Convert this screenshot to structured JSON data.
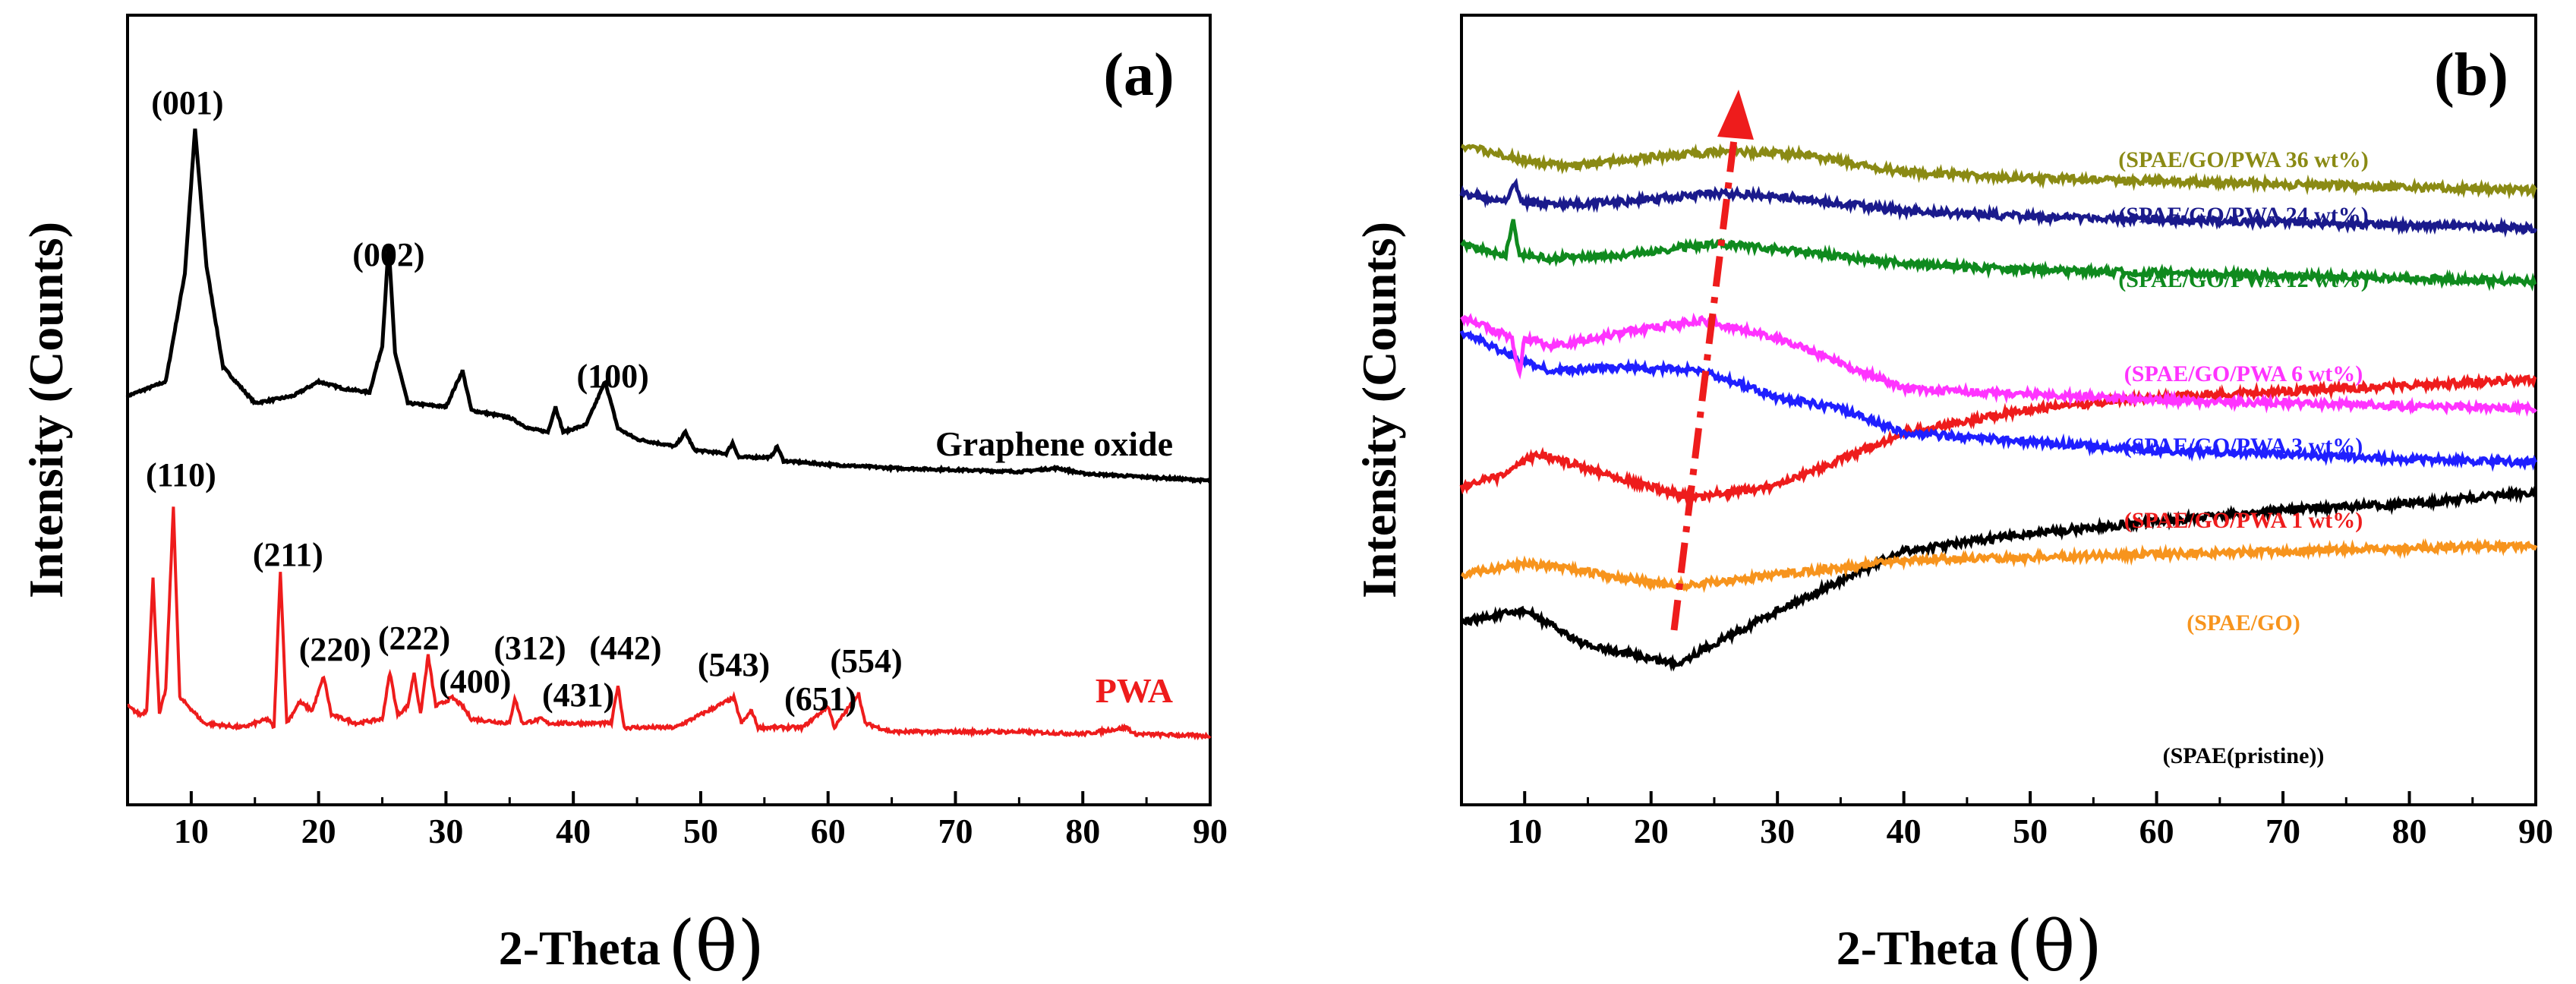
{
  "chart_data": [
    {
      "panel": "(a)",
      "type": "line",
      "xlabel": "2-Theta",
      "xlabel_symbol": "(θ)",
      "ylabel": "Intensity (Counts)",
      "xlim": [
        5,
        90
      ],
      "xticks": [
        10,
        20,
        30,
        40,
        50,
        60,
        70,
        80,
        90
      ],
      "series": [
        {
          "name": "Graphene oxide",
          "color": "#000000",
          "baseline": 0.43,
          "points": [
            [
              5,
              0.26
            ],
            [
              8,
              0.3
            ],
            [
              9.5,
              0.6
            ],
            [
              10.3,
              1.0
            ],
            [
              11.2,
              0.62
            ],
            [
              12.5,
              0.34
            ],
            [
              15,
              0.24
            ],
            [
              18,
              0.26
            ],
            [
              20,
              0.3
            ],
            [
              22,
              0.28
            ],
            [
              24,
              0.27
            ],
            [
              25.0,
              0.4
            ],
            [
              25.5,
              0.68
            ],
            [
              26.0,
              0.38
            ],
            [
              27,
              0.24
            ],
            [
              30,
              0.23
            ],
            [
              31.3,
              0.33
            ],
            [
              32,
              0.22
            ],
            [
              35,
              0.2
            ],
            [
              36.5,
              0.17
            ],
            [
              38,
              0.16
            ],
            [
              38.6,
              0.23
            ],
            [
              39.2,
              0.16
            ],
            [
              41,
              0.18
            ],
            [
              42.5,
              0.3
            ],
            [
              43.5,
              0.17
            ],
            [
              45,
              0.14
            ],
            [
              48,
              0.12
            ],
            [
              48.8,
              0.16
            ],
            [
              49.5,
              0.11
            ],
            [
              52,
              0.1
            ],
            [
              52.5,
              0.13
            ],
            [
              53,
              0.09
            ],
            [
              55.5,
              0.09
            ],
            [
              56,
              0.12
            ],
            [
              56.5,
              0.08
            ],
            [
              60,
              0.07
            ],
            [
              65,
              0.06
            ],
            [
              70,
              0.055
            ],
            [
              75,
              0.05
            ],
            [
              78,
              0.06
            ],
            [
              80,
              0.045
            ],
            [
              85,
              0.035
            ],
            [
              90,
              0.025
            ]
          ],
          "peaks": [
            {
              "x": 10.3,
              "label": "(001)"
            },
            {
              "x": 25.5,
              "label": "(002)"
            },
            {
              "x": 42.5,
              "label": "(100)"
            }
          ]
        },
        {
          "name": "PWA",
          "color": "#ee1c1c",
          "baseline": 0.0,
          "points": [
            [
              5,
              0.08
            ],
            [
              6,
              0.06
            ],
            [
              6.5,
              0.07
            ],
            [
              7.0,
              0.38
            ],
            [
              7.5,
              0.06
            ],
            [
              8.0,
              0.12
            ],
            [
              8.6,
              0.55
            ],
            [
              9.1,
              0.1
            ],
            [
              9.8,
              0.08
            ],
            [
              11,
              0.04
            ],
            [
              14,
              0.03
            ],
            [
              16,
              0.05
            ],
            [
              16.5,
              0.03
            ],
            [
              17.0,
              0.4
            ],
            [
              17.5,
              0.04
            ],
            [
              18.5,
              0.09
            ],
            [
              19.5,
              0.07
            ],
            [
              20.4,
              0.15
            ],
            [
              21,
              0.06
            ],
            [
              23,
              0.04
            ],
            [
              25,
              0.05
            ],
            [
              25.6,
              0.16
            ],
            [
              26.2,
              0.06
            ],
            [
              27,
              0.08
            ],
            [
              27.5,
              0.16
            ],
            [
              28,
              0.06
            ],
            [
              28.6,
              0.2
            ],
            [
              29.2,
              0.08
            ],
            [
              30.5,
              0.1
            ],
            [
              31.3,
              0.08
            ],
            [
              32,
              0.05
            ],
            [
              35,
              0.04
            ],
            [
              35.4,
              0.1
            ],
            [
              36,
              0.04
            ],
            [
              37.5,
              0.05
            ],
            [
              38,
              0.04
            ],
            [
              43.0,
              0.04
            ],
            [
              43.5,
              0.13
            ],
            [
              44,
              0.03
            ],
            [
              48,
              0.03
            ],
            [
              52.6,
              0.1
            ],
            [
              53.2,
              0.04
            ],
            [
              54,
              0.07
            ],
            [
              54.5,
              0.03
            ],
            [
              58,
              0.03
            ],
            [
              60.0,
              0.08
            ],
            [
              60.5,
              0.03
            ],
            [
              62.4,
              0.11
            ],
            [
              62.9,
              0.04
            ],
            [
              65,
              0.02
            ],
            [
              70,
              0.02
            ],
            [
              75,
              0.02
            ],
            [
              80,
              0.015
            ],
            [
              83.5,
              0.03
            ],
            [
              84,
              0.015
            ],
            [
              90,
              0.01
            ]
          ],
          "peaks": [
            {
              "x": 8.6,
              "label": "(110)"
            },
            {
              "x": 17.0,
              "label": "(211)"
            },
            {
              "x": 20.4,
              "label": "(220)"
            },
            {
              "x": 27.5,
              "label": "(222)"
            },
            {
              "x": 30.5,
              "label": "(400)"
            },
            {
              "x": 35.4,
              "label": "(312)"
            },
            {
              "x": 38.0,
              "label": "(431)"
            },
            {
              "x": 43.5,
              "label": "(442)"
            },
            {
              "x": 52.6,
              "label": "(543)"
            },
            {
              "x": 60.0,
              "label": "(651)"
            },
            {
              "x": 62.4,
              "label": "(554)"
            }
          ]
        }
      ]
    },
    {
      "panel": "(b)",
      "type": "line",
      "xlabel": "2-Theta",
      "xlabel_symbol": "(θ)",
      "ylabel": "Intensity (Counts)",
      "xlim": [
        5,
        90
      ],
      "xticks": [
        10,
        20,
        30,
        40,
        50,
        60,
        70,
        80,
        90
      ],
      "annotation": "red dash-dot arrow indicating amorphous peak shift toward higher 2-Theta with PWA loading",
      "series": [
        {
          "name": "(SPAE(pristine))",
          "color": "#000000",
          "shape": [
            5,
            0.82,
            10,
            0.8,
            15,
            0.86,
            22,
            0.89,
            30,
            0.8,
            40,
            0.7,
            50,
            0.67,
            60,
            0.65,
            70,
            0.63,
            80,
            0.62,
            90,
            0.6
          ]
        },
        {
          "name": "(SPAE/GO)",
          "color": "#f7941d",
          "shape": [
            5,
            0.74,
            10,
            0.72,
            15,
            0.735,
            22,
            0.76,
            30,
            0.74,
            40,
            0.715,
            50,
            0.71,
            60,
            0.705,
            70,
            0.7,
            80,
            0.695,
            90,
            0.69
          ]
        },
        {
          "name": "(SPAE/GO/PWA 1 wt%)",
          "color": "#ee1c1c",
          "shape": [
            5,
            0.59,
            8,
            0.575,
            11,
            0.535,
            15,
            0.56,
            23,
            0.61,
            30,
            0.59,
            40,
            0.5,
            50,
            0.46,
            60,
            0.44,
            70,
            0.43,
            80,
            0.42,
            90,
            0.41
          ]
        },
        {
          "name": "(SPAE/GO/PWA 3 wt%)",
          "color": "#1f1fff",
          "shape": [
            5,
            0.33,
            8,
            0.36,
            10,
            0.38,
            12,
            0.395,
            18,
            0.39,
            24,
            0.395,
            30,
            0.44,
            35,
            0.46,
            40,
            0.5,
            50,
            0.515,
            60,
            0.53,
            70,
            0.535,
            80,
            0.545,
            90,
            0.55
          ]
        },
        {
          "name": "(SPAE/GO/PWA 6 wt%)",
          "color": "#ff33ff",
          "shape": [
            5,
            0.305,
            9,
            0.34,
            9.6,
            0.4,
            10,
            0.34,
            12,
            0.355,
            18,
            0.33,
            24,
            0.31,
            30,
            0.34,
            40,
            0.425,
            50,
            0.435,
            60,
            0.445,
            70,
            0.45,
            80,
            0.455,
            90,
            0.46
          ]
        },
        {
          "name": "(SPAE/GO/PWA 12 wt%)",
          "color": "#0f8a1e",
          "shape": [
            5,
            0.18,
            8.5,
            0.2,
            9.1,
            0.145,
            9.6,
            0.2,
            12,
            0.205,
            18,
            0.2,
            25,
            0.18,
            30,
            0.19,
            40,
            0.215,
            50,
            0.225,
            60,
            0.23,
            70,
            0.235,
            80,
            0.24,
            90,
            0.245
          ]
        },
        {
          "name": "(SPAE/GO/PWA 24 wt%)",
          "color": "#1a1a8c",
          "shape": [
            5,
            0.095,
            8.5,
            0.11,
            9.2,
            0.075,
            9.8,
            0.11,
            12,
            0.115,
            18,
            0.11,
            25,
            0.095,
            30,
            0.1,
            40,
            0.125,
            50,
            0.135,
            60,
            0.14,
            70,
            0.145,
            80,
            0.15,
            90,
            0.155
          ]
        },
        {
          "name": "(SPAE/GO/PWA 36 wt%)",
          "color": "#8a8a14",
          "shape": [
            5,
            0.015,
            10,
            0.04,
            13,
            0.05,
            20,
            0.035,
            26,
            0.025,
            32,
            0.03,
            40,
            0.06,
            50,
            0.07,
            60,
            0.075,
            70,
            0.08,
            80,
            0.085,
            90,
            0.09
          ]
        }
      ]
    }
  ]
}
